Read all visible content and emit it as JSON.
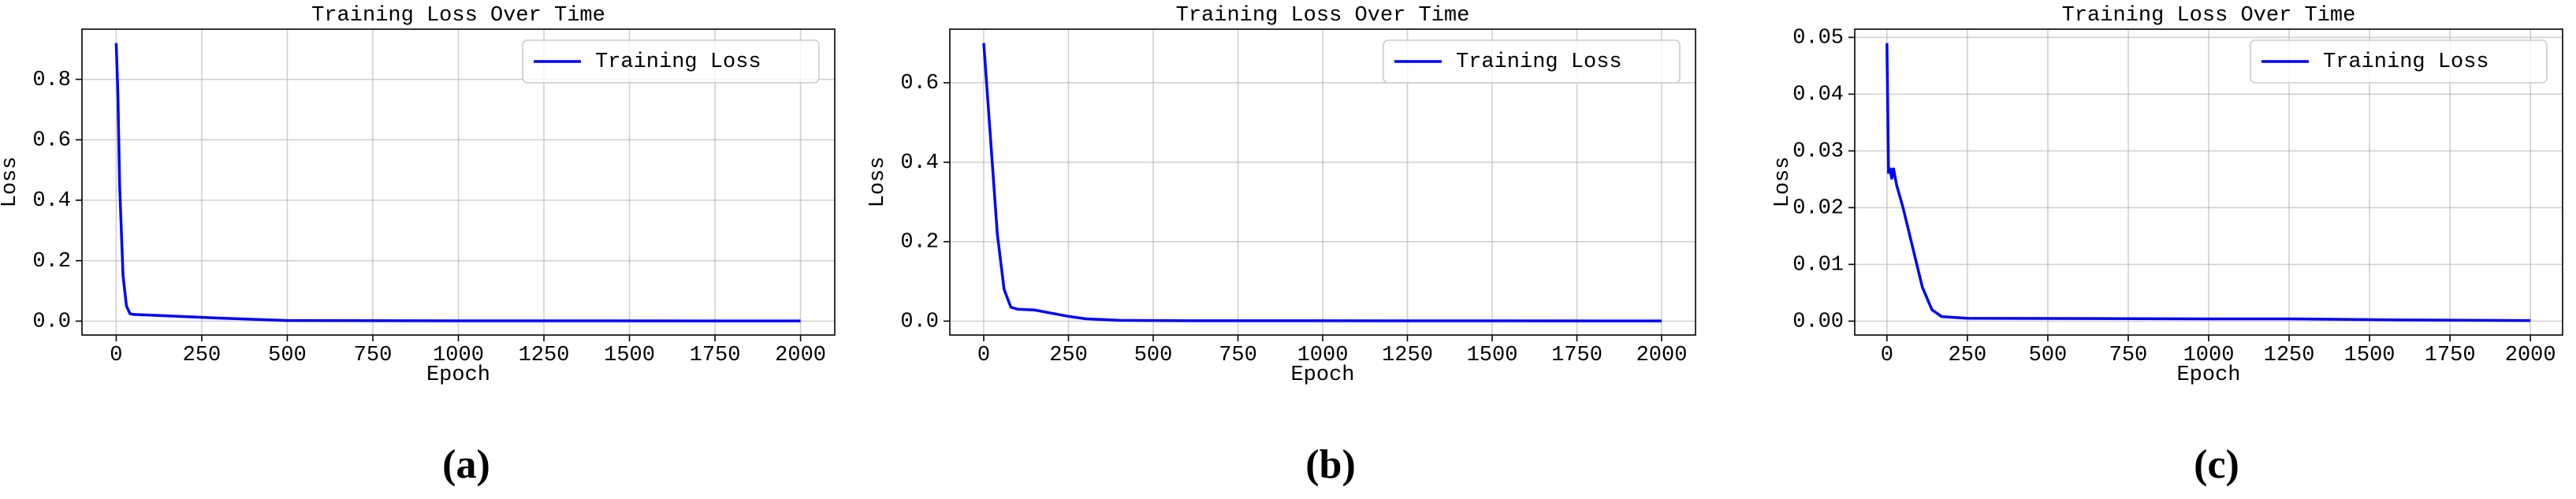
{
  "chart_data": [
    {
      "type": "line",
      "title": "Training Loss Over Time",
      "x_label": "Epoch",
      "y_label": "Loss",
      "panel_label": "(a)",
      "x": [
        0,
        5,
        10,
        20,
        30,
        40,
        50,
        100,
        200,
        300,
        500,
        1000,
        2000
      ],
      "series": [
        {
          "name": "Training Loss",
          "color": "#0000ff",
          "values": [
            0.92,
            0.75,
            0.45,
            0.15,
            0.05,
            0.025,
            0.022,
            0.02,
            0.015,
            0.01,
            0.002,
            0.001,
            0.0005
          ]
        }
      ],
      "xlim": [
        -100,
        2100
      ],
      "xticks": [
        0,
        250,
        500,
        750,
        1000,
        1250,
        1500,
        1750,
        2000
      ],
      "ylim": [
        -0.046,
        0.966
      ],
      "yticks": [
        {
          "value": 0,
          "label": "0.0"
        },
        0.2,
        0.4,
        0.6,
        0.8
      ],
      "grid": true,
      "legend": "upper right"
    },
    {
      "type": "line",
      "title": "Training Loss Over Time",
      "x_label": "Epoch",
      "y_label": "Loss",
      "panel_label": "(b)",
      "x": [
        0,
        10,
        25,
        40,
        60,
        80,
        100,
        150,
        200,
        250,
        300,
        400,
        600,
        2000
      ],
      "series": [
        {
          "name": "Training Loss",
          "color": "#0000ff",
          "values": [
            0.7,
            0.58,
            0.4,
            0.22,
            0.08,
            0.035,
            0.03,
            0.028,
            0.02,
            0.012,
            0.006,
            0.002,
            0.001,
            0.0005
          ]
        }
      ],
      "xlim": [
        -100,
        2100
      ],
      "xticks": [
        0,
        250,
        500,
        750,
        1000,
        1250,
        1500,
        1750,
        2000
      ],
      "ylim": [
        -0.035,
        0.735
      ],
      "yticks": [
        {
          "value": 0,
          "label": "0.0"
        },
        0.2,
        0.4,
        0.6
      ],
      "grid": true,
      "legend": "upper right"
    },
    {
      "type": "line",
      "title": "Training Loss Over Time",
      "x_label": "Epoch",
      "y_label": "Loss",
      "panel_label": "(c)",
      "x": [
        0,
        5,
        10,
        15,
        20,
        30,
        50,
        80,
        110,
        140,
        170,
        250,
        1000,
        1250,
        1600,
        2000
      ],
      "series": [
        {
          "name": "Training Loss",
          "color": "#0000ff",
          "values": [
            0.049,
            0.026,
            0.027,
            0.025,
            0.027,
            0.024,
            0.02,
            0.013,
            0.006,
            0.002,
            0.0008,
            0.0005,
            0.0004,
            0.0004,
            0.0002,
            0.0001
          ]
        }
      ],
      "xlim": [
        -100,
        2100
      ],
      "xticks": [
        0,
        250,
        500,
        750,
        1000,
        1250,
        1500,
        1750,
        2000
      ],
      "ylim": [
        -0.00245,
        0.05145
      ],
      "yticks": [
        {
          "value": 0,
          "label": "0.00"
        },
        0.01,
        0.02,
        0.03,
        0.04,
        0.05
      ],
      "grid": true,
      "legend": "upper right"
    }
  ]
}
